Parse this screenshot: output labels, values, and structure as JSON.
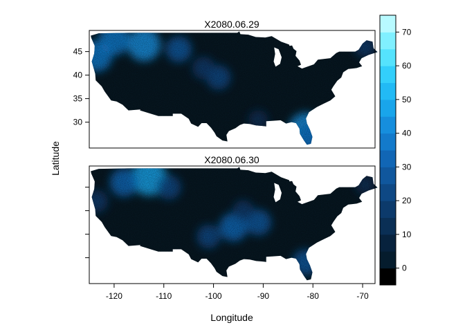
{
  "chart_data": {
    "type": "heatmap",
    "xlabel": "Longitude",
    "ylabel": "Latitude",
    "xlim": [
      -125,
      -67.5
    ],
    "ylim": [
      24.5,
      49.5
    ],
    "x_ticks": [
      -120,
      -110,
      -100,
      -90,
      -80,
      -70
    ],
    "y_ticks": [
      30,
      35,
      40,
      45
    ],
    "panels": [
      {
        "title": "X2080.06.29",
        "y_tick_labels_shown": true,
        "hotspots": [
          {
            "lon": -114,
            "lat": 46.5,
            "value": 40
          },
          {
            "lon": -120,
            "lat": 47.5,
            "value": 35
          },
          {
            "lon": -107,
            "lat": 45.5,
            "value": 25
          },
          {
            "lon": -123.5,
            "lat": 44,
            "value": 35
          },
          {
            "lon": -99,
            "lat": 39.5,
            "value": 22
          },
          {
            "lon": -102,
            "lat": 41.5,
            "value": 18
          },
          {
            "lon": -81.5,
            "lat": 28.5,
            "value": 40
          },
          {
            "lon": -80.5,
            "lat": 26.5,
            "value": 30
          },
          {
            "lon": -91,
            "lat": 30.5,
            "value": 12
          },
          {
            "lon": -69.5,
            "lat": 46,
            "value": 15
          }
        ]
      },
      {
        "title": "X2080.06.30",
        "y_tick_labels_shown": false,
        "hotspots": [
          {
            "lon": -113,
            "lat": 47,
            "value": 45
          },
          {
            "lon": -118,
            "lat": 46,
            "value": 30
          },
          {
            "lon": -109,
            "lat": 45,
            "value": 22
          },
          {
            "lon": -96,
            "lat": 36.5,
            "value": 30
          },
          {
            "lon": -91,
            "lat": 37.5,
            "value": 25
          },
          {
            "lon": -101,
            "lat": 34.5,
            "value": 20
          },
          {
            "lon": -94,
            "lat": 40,
            "value": 15
          },
          {
            "lon": -81.5,
            "lat": 29,
            "value": 25
          },
          {
            "lon": -123.5,
            "lat": 42,
            "value": 18
          },
          {
            "lon": -69.5,
            "lat": 45.5,
            "value": 12
          }
        ]
      }
    ],
    "colorbar": {
      "min": -5,
      "max": 75,
      "ticks": [
        0,
        10,
        20,
        30,
        40,
        50,
        60,
        70
      ],
      "breaks": [
        -5,
        0,
        5,
        10,
        15,
        20,
        25,
        30,
        35,
        40,
        45,
        50,
        55,
        60,
        65,
        70,
        75
      ],
      "colors": [
        "#000000",
        "#051C2D",
        "#07223D",
        "#0A2F55",
        "#0C3A6B",
        "#0E4884",
        "#10579D",
        "#1166B5",
        "#137ACB",
        "#168EDD",
        "#19A5EB",
        "#22BAF5",
        "#33CFFB",
        "#55E3FD",
        "#80F0FF",
        "#B8FAFF"
      ]
    }
  }
}
